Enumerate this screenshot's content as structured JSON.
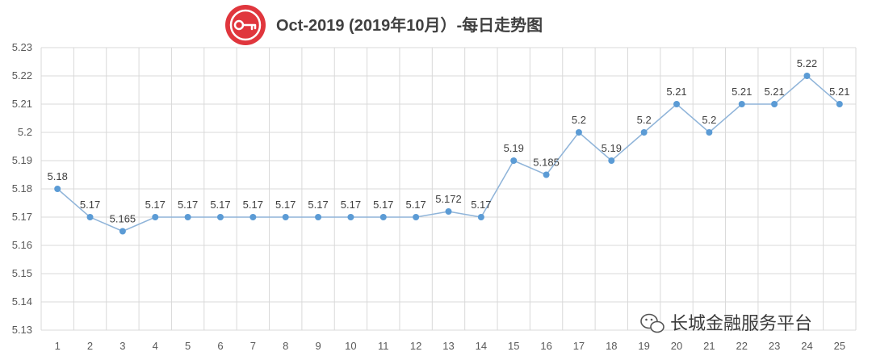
{
  "chart_data": {
    "type": "line",
    "title": "Oct-2019 (2019年10月）-每日走势图",
    "xlabel": "",
    "ylabel": "",
    "categories": [
      "1",
      "2",
      "3",
      "4",
      "5",
      "6",
      "7",
      "8",
      "9",
      "10",
      "11",
      "12",
      "13",
      "14",
      "15",
      "16",
      "17",
      "18",
      "19",
      "20",
      "21",
      "22",
      "23",
      "24",
      "25"
    ],
    "values": [
      5.18,
      5.17,
      5.165,
      5.17,
      5.17,
      5.17,
      5.17,
      5.17,
      5.17,
      5.17,
      5.17,
      5.17,
      5.172,
      5.17,
      5.19,
      5.185,
      5.2,
      5.19,
      5.2,
      5.21,
      5.2,
      5.21,
      5.21,
      5.22,
      5.21
    ],
    "data_labels": [
      "5.18",
      "5.17",
      "5.165",
      "5.17",
      "5.17",
      "5.17",
      "5.17",
      "5.17",
      "5.17",
      "5.17",
      "5.17",
      "5.17",
      "5.172",
      "5.17",
      "5.19",
      "5.185",
      "5.2",
      "5.19",
      "5.2",
      "5.21",
      "5.2",
      "5.21",
      "5.21",
      "5.22",
      "5.21"
    ],
    "ylim": [
      5.13,
      5.23
    ],
    "y_ticks": [
      "5.13",
      "5.14",
      "5.15",
      "5.16",
      "5.17",
      "5.18",
      "5.19",
      "5.2",
      "5.21",
      "5.22",
      "5.23"
    ],
    "grid": true,
    "legend": "none",
    "colors": {
      "line": "#8fb4d9",
      "marker": "#5b9bd5",
      "grid": "#d9d9d9",
      "logo": "#e0363d"
    }
  },
  "watermark": {
    "text": "长城金融服务平台",
    "icon": "wechat-icon"
  },
  "logo": {
    "icon": "key-icon"
  }
}
